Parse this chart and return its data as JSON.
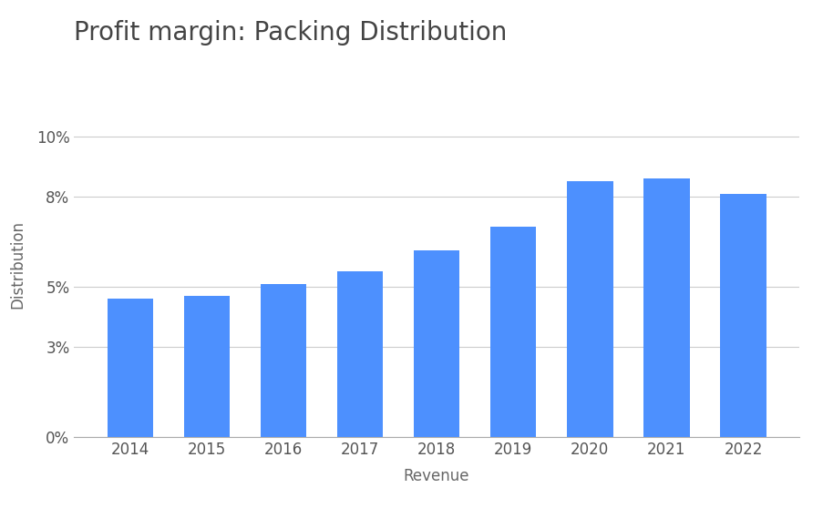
{
  "title": "Profit margin: Packing Distribution",
  "xlabel": "Revenue",
  "ylabel": "Distribution",
  "categories": [
    "2014",
    "2015",
    "2016",
    "2017",
    "2018",
    "2019",
    "2020",
    "2021",
    "2022"
  ],
  "values": [
    0.046,
    0.047,
    0.051,
    0.055,
    0.062,
    0.07,
    0.085,
    0.086,
    0.081
  ],
  "bar_color": "#4d90fe",
  "yticks": [
    0.0,
    0.03,
    0.05,
    0.08,
    0.1
  ],
  "ytick_labels": [
    "0%",
    "3%",
    "5%",
    "8%",
    "10%"
  ],
  "ylim": [
    0,
    0.115
  ],
  "background_color": "#ffffff",
  "grid_color": "#cccccc",
  "title_color": "#444444",
  "axis_label_color": "#666666",
  "tick_label_color": "#555555",
  "title_fontsize": 20,
  "label_fontsize": 12,
  "tick_fontsize": 12
}
